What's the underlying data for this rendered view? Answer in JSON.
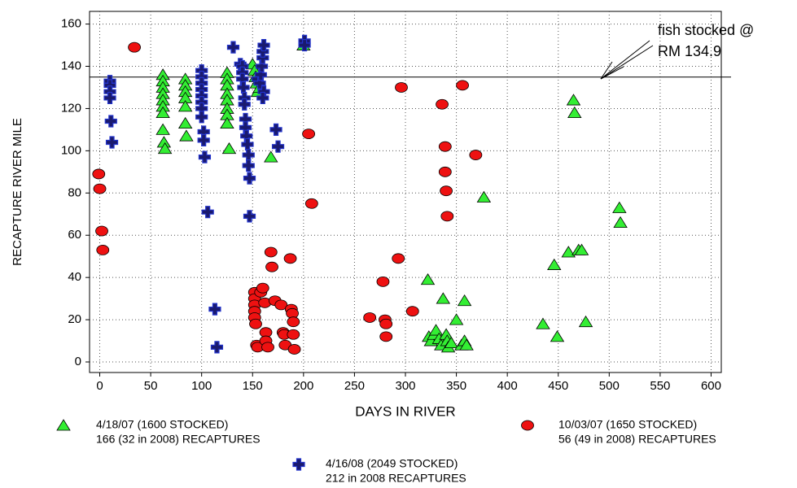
{
  "chart_data": {
    "type": "scatter",
    "x_label": "DAYS IN RIVER",
    "y_label": "RECAPTURE RIVER MILE",
    "xlim": [
      -10,
      610
    ],
    "ylim": [
      -5,
      166
    ],
    "xticks": [
      0,
      50,
      100,
      150,
      200,
      250,
      300,
      350,
      400,
      450,
      500,
      550,
      600
    ],
    "yticks": [
      0,
      20,
      40,
      60,
      80,
      100,
      120,
      140,
      160
    ],
    "grid": true,
    "hline": 134.9,
    "annotation": [
      "fish stocked @",
      "RM 134.9"
    ],
    "series": [
      {
        "name": "4/18/07 (1600 STOCKED)",
        "note": "166 (32 in 2008) RECAPTURES",
        "color": "#33ee33",
        "marker": "triangle",
        "x": [
          62,
          62,
          62,
          62,
          62,
          62,
          62,
          62,
          63,
          64,
          84,
          84,
          84,
          84,
          84,
          84,
          85,
          125,
          125,
          125,
          125,
          125,
          125,
          125,
          125,
          127,
          150,
          152,
          153,
          154,
          155,
          157,
          168,
          200,
          322,
          323,
          325,
          328,
          330,
          333,
          335,
          337,
          340,
          341,
          342,
          345,
          350,
          355,
          358,
          358,
          360,
          377,
          435,
          446,
          449,
          460,
          465,
          466,
          470,
          473,
          477,
          510,
          511
        ],
        "y": [
          136,
          133,
          130,
          127,
          124,
          121,
          118,
          110,
          104,
          101,
          134,
          131,
          128,
          125,
          121,
          113,
          107,
          137,
          134,
          131,
          127,
          124,
          120,
          117,
          113,
          101,
          141,
          138,
          135,
          132,
          128,
          130,
          97,
          150,
          39,
          12,
          10,
          13,
          15,
          11,
          8,
          30,
          13,
          10,
          7,
          9,
          20,
          8,
          29,
          10,
          8,
          78,
          18,
          46,
          12,
          52,
          124,
          118,
          53,
          53,
          19,
          73,
          66
        ]
      },
      {
        "name": "10/03/07 (1650 STOCKED)",
        "note": "56 (49 in 2008) RECAPTURES",
        "color": "#ee1111",
        "marker": "circle",
        "x": [
          -1,
          0,
          2,
          3,
          34,
          152,
          152,
          152,
          152,
          152,
          153,
          154,
          155,
          158,
          160,
          162,
          163,
          163,
          165,
          168,
          169,
          172,
          178,
          180,
          181,
          182,
          187,
          188,
          189,
          190,
          190,
          191,
          205,
          208,
          265,
          278,
          280,
          281,
          281,
          293,
          296,
          307,
          336,
          339,
          339,
          340,
          341,
          356,
          369
        ],
        "y": [
          89,
          82,
          62,
          53,
          149,
          33,
          30,
          27,
          24,
          21,
          18,
          8,
          7,
          33,
          35,
          28,
          14,
          10,
          7,
          52,
          45,
          29,
          27,
          14,
          13,
          8,
          49,
          25,
          23,
          19,
          13,
          6,
          108,
          75,
          21,
          38,
          20,
          18,
          12,
          49,
          130,
          24,
          122,
          102,
          90,
          81,
          69,
          131,
          98
        ]
      },
      {
        "name": "4/16/08 (2049 STOCKED)",
        "note": "212 in 2008 RECAPTURES",
        "color": "#1a1a6e",
        "marker": "cross",
        "x": [
          10,
          10,
          10,
          10,
          11,
          12,
          100,
          100,
          100,
          100,
          100,
          100,
          100,
          100,
          102,
          102,
          103,
          106,
          113,
          115,
          131,
          138,
          140,
          140,
          140,
          141,
          142,
          142,
          143,
          143,
          144,
          145,
          146,
          146,
          147,
          147,
          155,
          157,
          158,
          159,
          160,
          160,
          161,
          161,
          160,
          173,
          175,
          201,
          201
        ],
        "y": [
          133,
          131,
          128,
          125,
          114,
          104,
          138,
          135,
          132,
          129,
          126,
          123,
          120,
          116,
          109,
          105,
          97,
          71,
          25,
          7,
          149,
          141,
          140,
          137,
          134,
          130,
          125,
          122,
          115,
          111,
          107,
          103,
          98,
          93,
          87,
          69,
          134,
          132,
          136,
          140,
          144,
          147,
          150,
          128,
          125,
          110,
          102,
          152,
          150
        ]
      }
    ]
  }
}
